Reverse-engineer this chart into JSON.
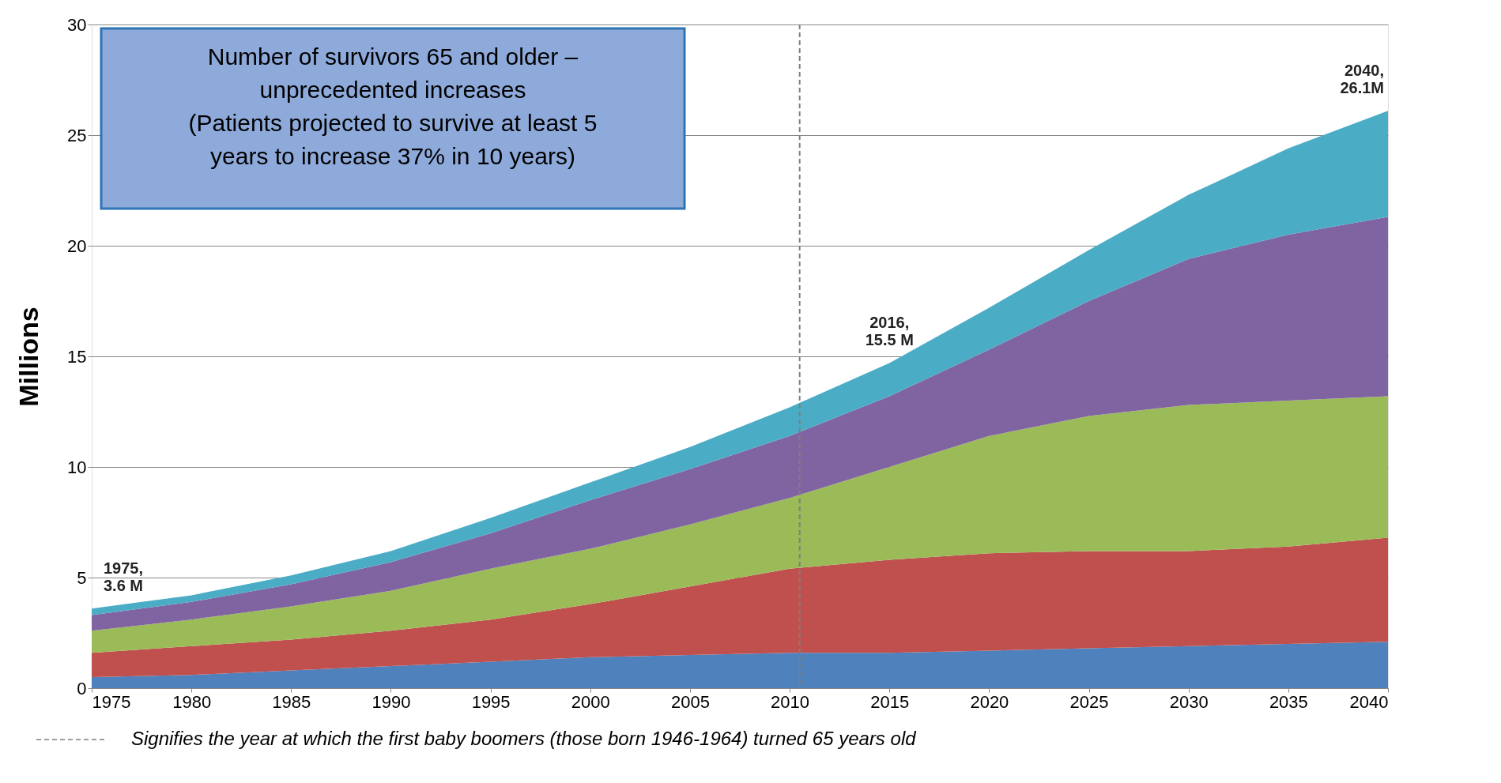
{
  "chart_data": {
    "type": "area",
    "stacked": true,
    "ylabel": "Millions",
    "x": [
      1975,
      1980,
      1985,
      1990,
      1995,
      2000,
      2005,
      2010,
      2015,
      2020,
      2025,
      2030,
      2035,
      2040
    ],
    "series": [
      {
        "color": "#4f81bd",
        "values": [
          0.5,
          0.6,
          0.8,
          1.0,
          1.2,
          1.4,
          1.5,
          1.6,
          1.6,
          1.7,
          1.8,
          1.9,
          2.0,
          2.1
        ]
      },
      {
        "color": "#c0504d",
        "values": [
          1.1,
          1.3,
          1.4,
          1.6,
          1.9,
          2.4,
          3.1,
          3.8,
          4.2,
          4.4,
          4.4,
          4.3,
          4.4,
          4.7
        ]
      },
      {
        "color": "#9bbb59",
        "values": [
          1.0,
          1.2,
          1.5,
          1.8,
          2.3,
          2.5,
          2.8,
          3.2,
          4.2,
          5.3,
          6.1,
          6.6,
          6.6,
          6.4
        ]
      },
      {
        "color": "#8064a2",
        "values": [
          0.7,
          0.8,
          1.0,
          1.3,
          1.6,
          2.2,
          2.5,
          2.8,
          3.2,
          3.9,
          5.2,
          6.6,
          7.5,
          8.1
        ]
      },
      {
        "color": "#4bacc6",
        "values": [
          0.3,
          0.3,
          0.4,
          0.5,
          0.7,
          0.8,
          1.0,
          1.3,
          1.5,
          1.9,
          2.3,
          2.9,
          3.9,
          4.8
        ]
      }
    ],
    "xlim": [
      1975,
      2040
    ],
    "xticks": [
      1975,
      1980,
      1985,
      1990,
      1995,
      2000,
      2005,
      2010,
      2015,
      2020,
      2025,
      2030,
      2035,
      2040
    ],
    "ylim": [
      0,
      30
    ],
    "yticks": [
      0,
      5,
      10,
      15,
      20,
      25,
      30
    ],
    "grid": "y",
    "legend": "bottom",
    "ref_lines": [
      {
        "axis": "x",
        "value": 2010.5,
        "label": "Signifies the year at which the first baby boomers (those born 1946-1964) turned 65 years old",
        "line_style": "dashed",
        "color": "#7f7f7f"
      }
    ],
    "annotations": [
      "Number of survivors 65 and older –\nunprecedented increases\n(Patients projected to survive at least 5\nyears to increase 37% in 10 years)",
      {
        "text": "1975,\n3.6 M",
        "x": 1975,
        "y": 3.6
      },
      {
        "text": "2016,\n15.5 M",
        "x": 2015,
        "y": 14.7
      },
      {
        "text": "2040,\n26.1M",
        "x": 2040,
        "y": 26.1
      }
    ]
  }
}
